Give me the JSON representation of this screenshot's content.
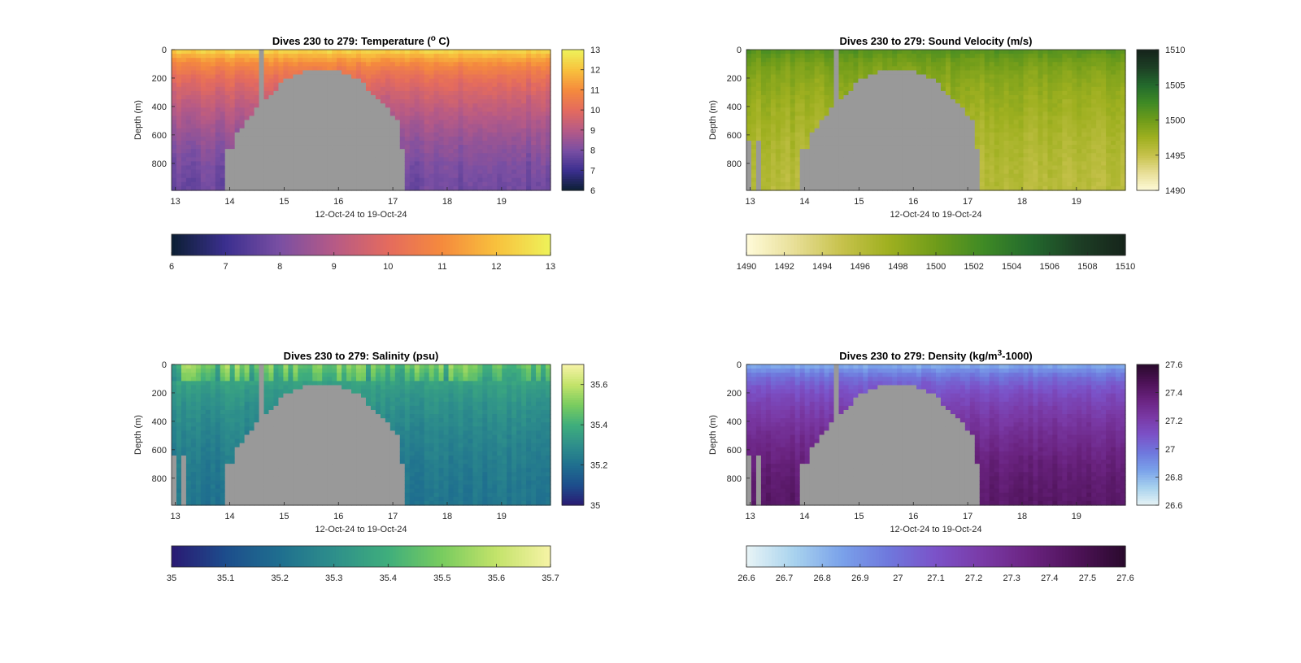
{
  "chart_data": [
    {
      "type": "heatmap",
      "title": "Dives 230 to 279: Temperature (",
      "title_sup": "o",
      "title_tail": " C)",
      "ylabel": "Depth (m)",
      "xlabel": "12-Oct-24 to 19-Oct-24",
      "xlim": [
        12.93,
        19.9
      ],
      "ylim": [
        0,
        990
      ],
      "xticks": [
        "13",
        "14",
        "15",
        "16",
        "17",
        "18",
        "19"
      ],
      "yticks": [
        "0",
        "200",
        "400",
        "600",
        "800"
      ],
      "clim": [
        6,
        13
      ],
      "colorbar_ticks": [
        "6",
        "7",
        "8",
        "9",
        "10",
        "11",
        "12",
        "13"
      ],
      "hcolorbar_ticks": [
        "6",
        "7",
        "8",
        "9",
        "10",
        "11",
        "12",
        "13"
      ],
      "colormap": [
        "#0b1f33",
        "#3b2f8f",
        "#7a4fa3",
        "#b65a86",
        "#e46b5e",
        "#f58a3d",
        "#f8c13d",
        "#eef25a"
      ],
      "surface_value": 12.6,
      "deep_value": 7.8,
      "early_bottom_gaps": false
    },
    {
      "type": "heatmap",
      "title": "Dives 230 to 279: Sound Velocity (m/s)",
      "title_sup": "",
      "title_tail": "",
      "ylabel": "Depth (m)",
      "xlabel": "12-Oct-24 to 19-Oct-24",
      "xlim": [
        12.93,
        19.9
      ],
      "ylim": [
        0,
        990
      ],
      "xticks": [
        "13",
        "14",
        "15",
        "16",
        "17",
        "18",
        "19"
      ],
      "yticks": [
        "0",
        "200",
        "400",
        "600",
        "800"
      ],
      "clim": [
        1490,
        1510
      ],
      "colorbar_ticks": [
        "1490",
        "1495",
        "1500",
        "1505",
        "1510"
      ],
      "hcolorbar_ticks": [
        "1490",
        "1492",
        "1494",
        "1496",
        "1498",
        "1500",
        "1502",
        "1504",
        "1506",
        "1508",
        "1510"
      ],
      "colormap": [
        "#fffbd9",
        "#e8df98",
        "#c7c24c",
        "#9fb020",
        "#6f9c1a",
        "#3f8a25",
        "#236a2d",
        "#1d3f25",
        "#16241b"
      ],
      "surface_value": 1501.5,
      "deep_value": 1496.0,
      "early_bottom_gaps": true
    },
    {
      "type": "heatmap",
      "title": "Dives 230 to 279: Salinity (psu)",
      "title_sup": "",
      "title_tail": "",
      "ylabel": "Depth (m)",
      "xlabel": "12-Oct-24 to 19-Oct-24",
      "xlim": [
        12.93,
        19.9
      ],
      "ylim": [
        0,
        990
      ],
      "xticks": [
        "13",
        "14",
        "15",
        "16",
        "17",
        "18",
        "19"
      ],
      "yticks": [
        "0",
        "200",
        "400",
        "600",
        "800"
      ],
      "clim": [
        35.0,
        35.7
      ],
      "colorbar_ticks": [
        "35",
        "35.2",
        "35.4",
        "35.6"
      ],
      "hcolorbar_ticks": [
        "35",
        "35.1",
        "35.2",
        "35.3",
        "35.4",
        "35.5",
        "35.6",
        "35.7"
      ],
      "colormap": [
        "#2a1a73",
        "#1d4d8c",
        "#1f6f8f",
        "#2e8f8b",
        "#3fae7c",
        "#79cc5f",
        "#c3e36a",
        "#f6f3a6"
      ],
      "surface_value": 35.45,
      "deep_value": 35.22,
      "early_bottom_gaps": true
    },
    {
      "type": "heatmap",
      "title": "Dives 230 to 279: Density (kg/m",
      "title_sup": "3",
      "title_tail": "-1000)",
      "ylabel": "Depth (m)",
      "xlabel": "12-Oct-24 to 19-Oct-24",
      "xlim": [
        12.93,
        19.9
      ],
      "ylim": [
        0,
        990
      ],
      "xticks": [
        "13",
        "14",
        "15",
        "16",
        "17",
        "18",
        "19"
      ],
      "yticks": [
        "0",
        "200",
        "400",
        "600",
        "800"
      ],
      "clim": [
        26.6,
        27.6
      ],
      "colorbar_ticks": [
        "26.6",
        "26.8",
        "27",
        "27.2",
        "27.4",
        "27.6"
      ],
      "hcolorbar_ticks": [
        "26.6",
        "26.7",
        "26.8",
        "26.9",
        "27",
        "27.1",
        "27.2",
        "27.3",
        "27.4",
        "27.5",
        "27.6"
      ],
      "colormap": [
        "#e8f4f6",
        "#a9d3ee",
        "#7aa2ea",
        "#6f78dd",
        "#7b52c8",
        "#7a3aa6",
        "#6a2380",
        "#4d1257",
        "#2a0a2d"
      ],
      "surface_value": 26.8,
      "deep_value": 27.42,
      "early_bottom_gaps": true
    }
  ]
}
